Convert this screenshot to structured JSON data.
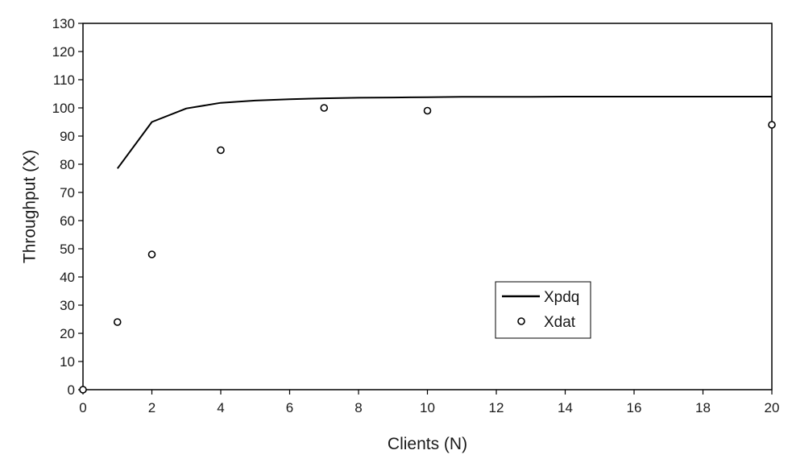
{
  "chart_data": {
    "type": "line",
    "xlabel": "Clients (N)",
    "ylabel": "Throughput (X)",
    "xlim": [
      0,
      20
    ],
    "ylim": [
      0,
      130
    ],
    "xticks": [
      "0",
      "2",
      "4",
      "6",
      "8",
      "10",
      "12",
      "14",
      "16",
      "18",
      "20"
    ],
    "yticks": [
      "0",
      "10",
      "20",
      "30",
      "40",
      "50",
      "60",
      "70",
      "80",
      "90",
      "100",
      "110",
      "120",
      "130"
    ],
    "grid": false,
    "legend_position": "lower-right",
    "series": [
      {
        "name": "Xpdq",
        "style": "line",
        "color": "#000000",
        "x": [
          1,
          2,
          3,
          4,
          5,
          6,
          7,
          8,
          9,
          10,
          11,
          12,
          13,
          14,
          15,
          16,
          17,
          18,
          19,
          20
        ],
        "y": [
          78.5,
          95,
          99.8,
          101.8,
          102.6,
          103.1,
          103.4,
          103.6,
          103.7,
          103.8,
          103.9,
          103.9,
          103.9,
          104.0,
          104.0,
          104.0,
          104.0,
          104.0,
          104.0,
          104.0
        ]
      },
      {
        "name": "Xdat",
        "style": "markers",
        "marker": "open-circle",
        "color": "#000000",
        "x": [
          0,
          1,
          2,
          4,
          7,
          10,
          20
        ],
        "y": [
          0,
          24,
          48,
          85,
          100,
          99,
          94
        ]
      }
    ]
  }
}
